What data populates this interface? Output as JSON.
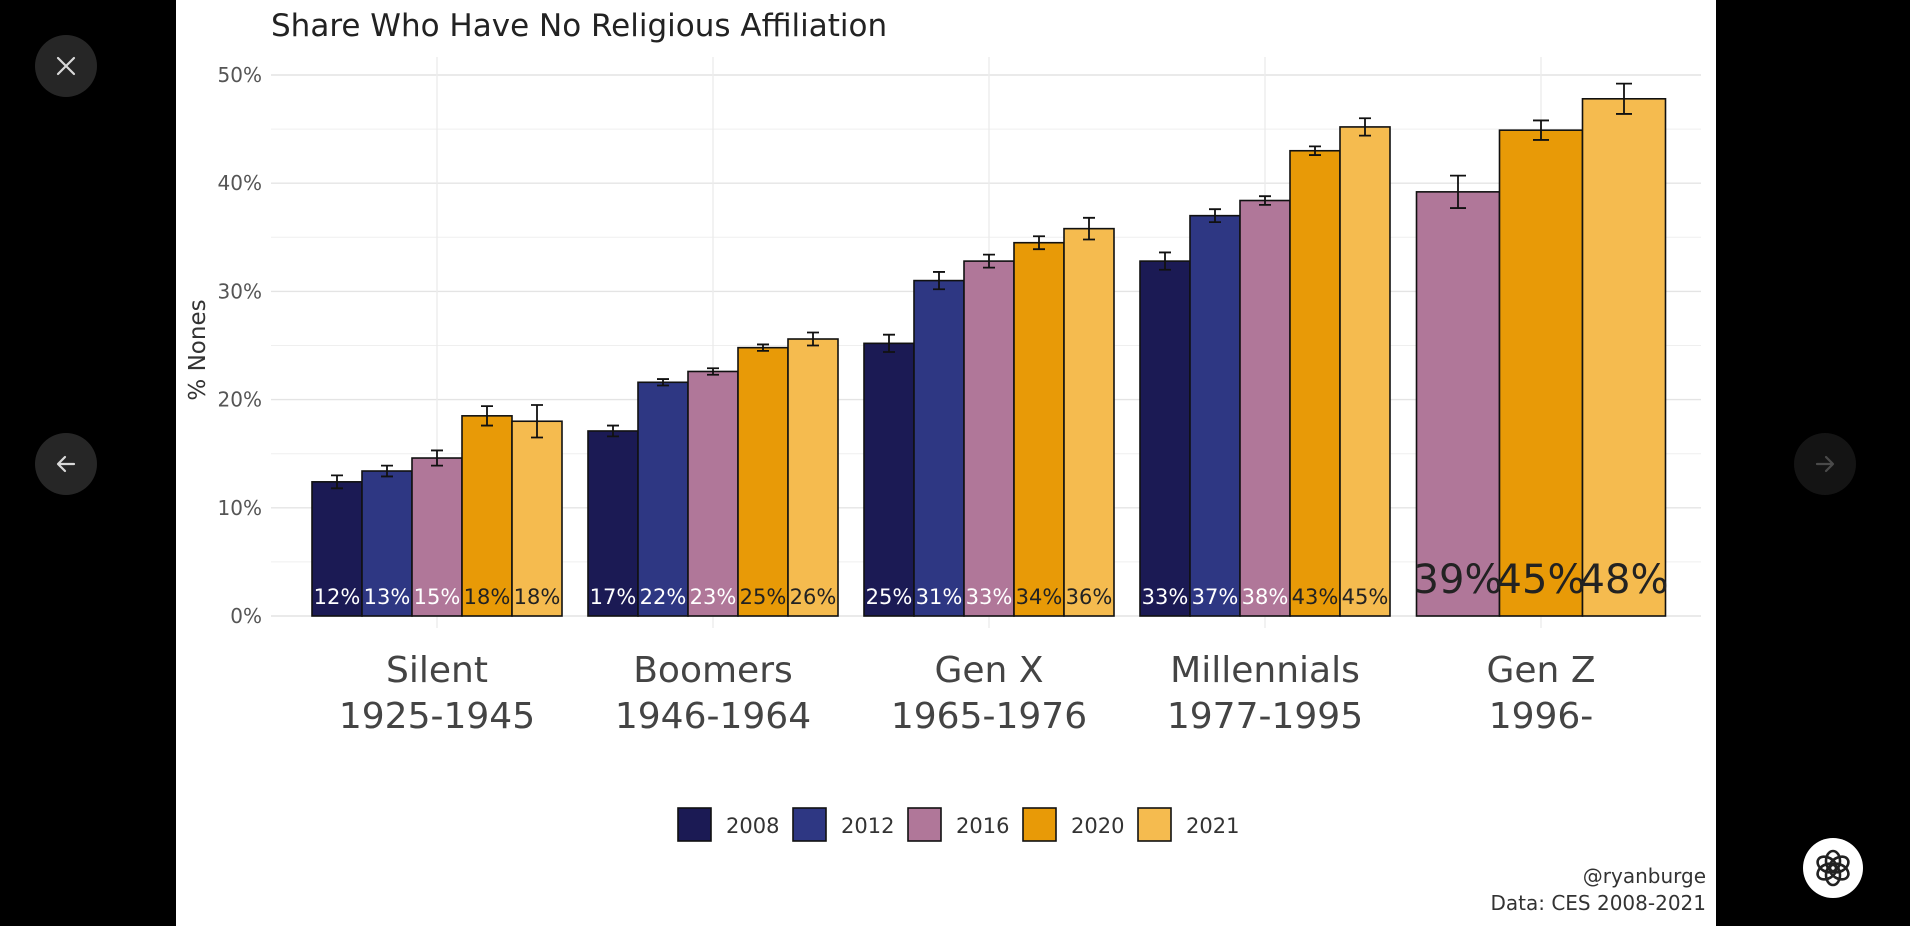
{
  "viewer": {
    "close_icon": "close-icon",
    "prev_icon": "arrow-left-icon",
    "next_icon": "arrow-right-icon",
    "assistant_icon": "openai-logo-icon"
  },
  "chart_data": {
    "type": "bar",
    "title": "Share Who Have No Religious Affiliation",
    "ylabel": "% Nones",
    "xlabel": "",
    "ylim": [
      0,
      50
    ],
    "yticks": [
      {
        "value": 0,
        "label": "0%"
      },
      {
        "value": 10,
        "label": "10%"
      },
      {
        "value": 20,
        "label": "20%"
      },
      {
        "value": 30,
        "label": "30%"
      },
      {
        "value": 40,
        "label": "40%"
      },
      {
        "value": 50,
        "label": "50%"
      }
    ],
    "grid": true,
    "legend_position": "bottom",
    "categories": [
      {
        "name": "Silent",
        "years": "1925-1945"
      },
      {
        "name": "Boomers",
        "years": "1946-1964"
      },
      {
        "name": "Gen X",
        "years": "1965-1976"
      },
      {
        "name": "Millennials",
        "years": "1977-1995"
      },
      {
        "name": "Gen Z",
        "years": "1996-"
      }
    ],
    "series": [
      {
        "name": "2008",
        "color": "#1b1a54",
        "text_color": "#ffffff",
        "values": [
          12.4,
          17.1,
          25.2,
          32.8,
          null
        ],
        "labels": [
          "12%",
          "17%",
          "25%",
          "33%",
          null
        ],
        "error": [
          0.6,
          0.5,
          0.8,
          0.8,
          null
        ]
      },
      {
        "name": "2012",
        "color": "#2e3783",
        "text_color": "#ffffff",
        "values": [
          13.4,
          21.6,
          31.0,
          37.0,
          null
        ],
        "labels": [
          "13%",
          "22%",
          "31%",
          "37%",
          null
        ],
        "error": [
          0.5,
          0.3,
          0.8,
          0.6,
          null
        ]
      },
      {
        "name": "2016",
        "color": "#b07799",
        "text_color": "#ffffff",
        "values": [
          14.6,
          22.6,
          32.8,
          38.4,
          39.2
        ],
        "labels": [
          "15%",
          "23%",
          "33%",
          "38%",
          "39%"
        ],
        "error": [
          0.7,
          0.3,
          0.6,
          0.4,
          1.5
        ]
      },
      {
        "name": "2020",
        "color": "#e89a07",
        "text_color": "#222222",
        "values": [
          18.5,
          24.8,
          34.5,
          43.0,
          44.9
        ],
        "labels": [
          "18%",
          "25%",
          "34%",
          "43%",
          "45%"
        ],
        "error": [
          0.9,
          0.3,
          0.6,
          0.4,
          0.9
        ]
      },
      {
        "name": "2021",
        "color": "#f5bb4f",
        "text_color": "#222222",
        "values": [
          18.0,
          25.6,
          35.8,
          45.2,
          47.8
        ],
        "labels": [
          "18%",
          "26%",
          "36%",
          "45%",
          "48%"
        ],
        "error": [
          1.5,
          0.6,
          1.0,
          0.8,
          1.4
        ]
      }
    ],
    "credit_lines": [
      "@ryanburge",
      "Data: CES 2008-2021"
    ]
  }
}
